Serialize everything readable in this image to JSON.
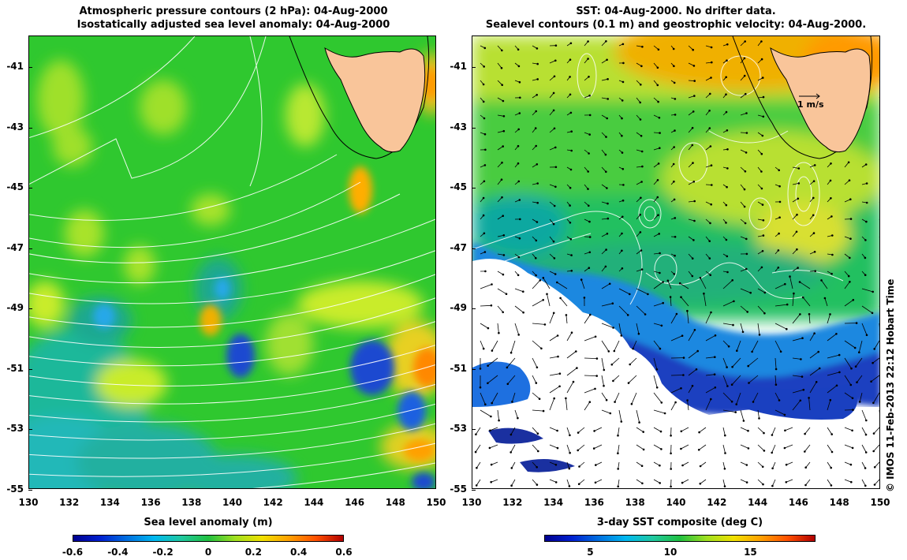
{
  "left": {
    "title_line1": "Atmospheric pressure contours (2 hPa): 04-Aug-2000",
    "title_line2": "Isostatically adjusted sea level anomaly: 04-Aug-2000",
    "colorbar_title": "Sea level anomaly (m)",
    "colorbar_ticks": [
      "-0.6",
      "-0.4",
      "-0.2",
      "0",
      "0.2",
      "0.4",
      "0.6"
    ]
  },
  "right": {
    "title_line1": "SST: 04-Aug-2000. No drifter data.",
    "title_line2": "Sealevel contours (0.1 m) and geostrophic velocity: 04-Aug-2000.",
    "colorbar_title": "3-day SST composite (deg C)",
    "colorbar_ticks": [
      "5",
      "10",
      "15"
    ],
    "scale_arrow_label": "1 m/s"
  },
  "y_ticks": [
    "-41",
    "-43",
    "-45",
    "-47",
    "-49",
    "-51",
    "-53",
    "-55"
  ],
  "x_ticks": [
    "130",
    "132",
    "134",
    "136",
    "138",
    "140",
    "142",
    "144",
    "146",
    "148",
    "150"
  ],
  "credit": "© IMOS 11-Feb-2013 22:12 Hobart Time",
  "colors": {
    "land": "#f9c59a",
    "sla_background": "#2fc82f",
    "sst_cold": "#1a4fc8",
    "sst_warm": "#ffae00"
  }
}
